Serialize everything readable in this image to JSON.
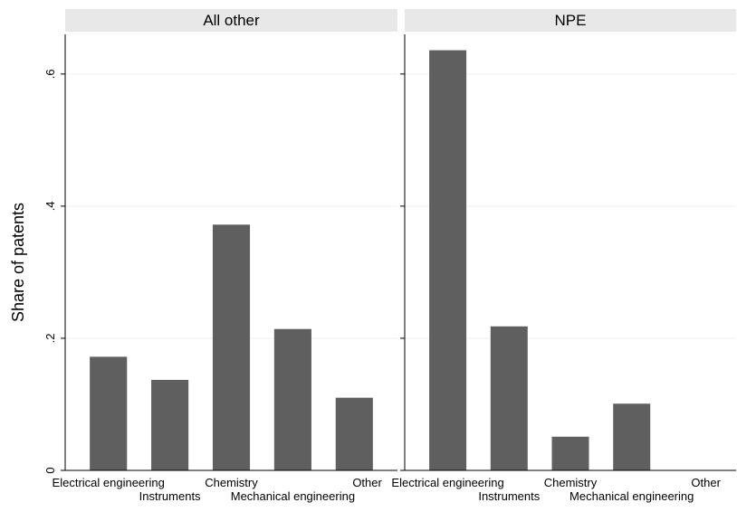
{
  "chart_data": {
    "type": "bar",
    "ylabel": "Share of patents",
    "ylim": [
      0,
      0.66
    ],
    "yticks": [
      0,
      0.2,
      0.4,
      0.6
    ],
    "ytick_labels": [
      "0",
      ".2",
      ".4",
      ".6"
    ],
    "grid": true,
    "categories": [
      "Electrical engineering",
      "Instruments",
      "Chemistry",
      "Mechanical engineering",
      "Other"
    ],
    "panels": [
      {
        "title": "All other",
        "values": [
          0.172,
          0.137,
          0.372,
          0.214,
          0.11
        ]
      },
      {
        "title": "NPE",
        "values": [
          0.636,
          0.218,
          0.051,
          0.101,
          0.0
        ]
      }
    ],
    "colors": {
      "bar": "#5f5f5f",
      "strip": "#e8e8e8",
      "grid": "#eaf2f3",
      "axis": "#000000"
    }
  }
}
